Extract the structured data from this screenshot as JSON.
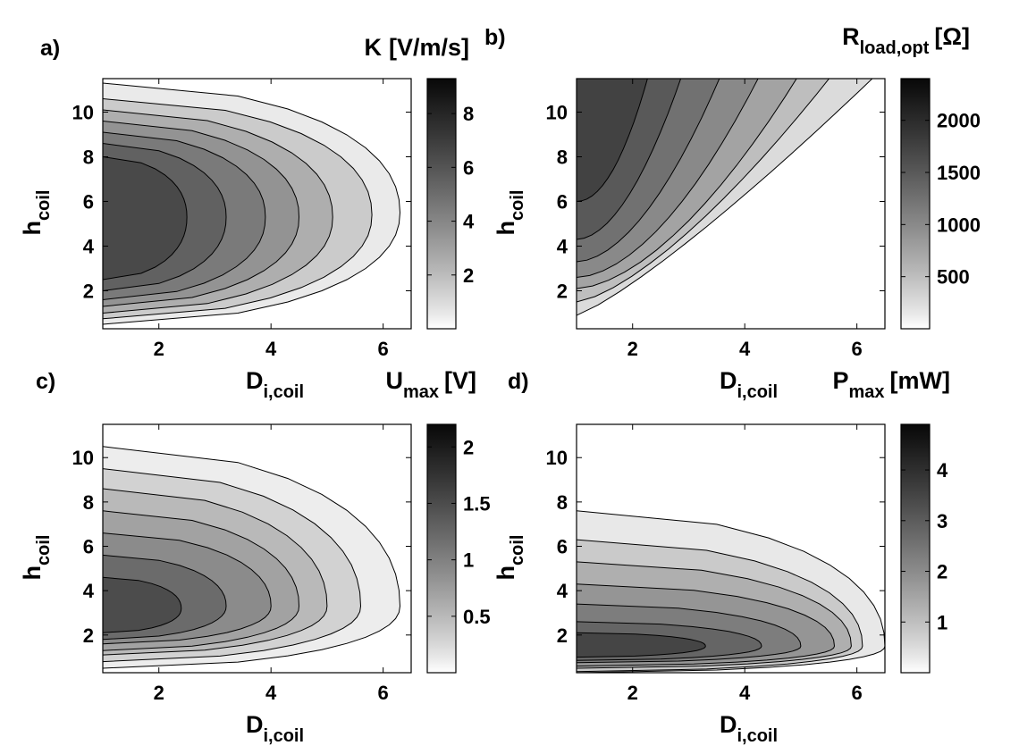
{
  "chart_data": [
    {
      "panel": "a)",
      "type": "heatmap",
      "subtype": "filled-contour",
      "colorbar_title": {
        "main": "K",
        "units": "[V/m/s]"
      },
      "xlabel": {
        "main": "D",
        "sub": "i,coil"
      },
      "ylabel": {
        "main": "h",
        "sub": "coil"
      },
      "xlim": [
        1,
        6.5
      ],
      "ylim": [
        0.3,
        11.5
      ],
      "xticks": [
        2,
        4,
        6
      ],
      "yticks": [
        2,
        4,
        6,
        8,
        10
      ],
      "clim": [
        0,
        9.3
      ],
      "cticks": [
        2,
        4,
        6,
        8
      ],
      "contours": [
        {
          "level": 0.5,
          "x_max": 6.3,
          "y_bottom": 0.5,
          "y_top": 11.3,
          "y_tip": 5.5
        },
        {
          "level": 1.5,
          "x_max": 5.8,
          "y_bottom": 0.75,
          "y_top": 10.6,
          "y_tip": 5.4
        },
        {
          "level": 2.5,
          "x_max": 5.1,
          "y_bottom": 1.0,
          "y_top": 10.1,
          "y_tip": 5.3
        },
        {
          "level": 3.5,
          "x_max": 4.5,
          "y_bottom": 1.3,
          "y_top": 9.6,
          "y_tip": 5.3
        },
        {
          "level": 4.5,
          "x_max": 3.9,
          "y_bottom": 1.6,
          "y_top": 9.1,
          "y_tip": 5.3
        },
        {
          "level": 5.5,
          "x_max": 3.2,
          "y_bottom": 2.0,
          "y_top": 8.6,
          "y_tip": 5.3
        },
        {
          "level": 6.5,
          "x_max": 2.5,
          "y_bottom": 2.5,
          "y_top": 8.0,
          "y_tip": 5.3
        }
      ]
    },
    {
      "panel": "b)",
      "type": "heatmap",
      "subtype": "filled-contour",
      "colorbar_title": {
        "main": "R",
        "sub": "load,opt",
        "units": "[Ω]"
      },
      "xlabel": {
        "main": "D",
        "sub": "i,coil"
      },
      "ylabel": {
        "main": "h",
        "sub": "coil"
      },
      "xlim": [
        1,
        6.5
      ],
      "ylim": [
        0.3,
        11.5
      ],
      "xticks": [
        2,
        4,
        6
      ],
      "yticks": [
        2,
        4,
        6,
        8,
        10
      ],
      "clim": [
        0,
        2400
      ],
      "cticks": [
        500,
        1000,
        1500,
        2000
      ],
      "contours": [
        {
          "level": 250,
          "x_top": 6.4,
          "y_left": 0.9,
          "x_bottom": 5.7
        },
        {
          "level": 500,
          "x_top": 5.6,
          "y_left": 1.5,
          "x_bottom": 4.3
        },
        {
          "level": 750,
          "x_top": 5.0,
          "y_left": 2.1,
          "x_bottom": 3.2
        },
        {
          "level": 1000,
          "x_top": 4.3,
          "y_left": 2.6,
          "x_bottom": 2.6
        },
        {
          "level": 1250,
          "x_top": 3.6,
          "y_left": 3.3,
          "x_bottom": 2.2
        },
        {
          "level": 1500,
          "x_top": 2.9,
          "y_left": 4.3,
          "x_bottom": 1.8
        },
        {
          "level": 1750,
          "x_top": 2.3,
          "y_left": 6.0,
          "x_bottom": 1.4
        }
      ]
    },
    {
      "panel": "c)",
      "type": "heatmap",
      "subtype": "filled-contour",
      "colorbar_title": {
        "main": "U",
        "sub": "max",
        "units": "[V]"
      },
      "xlabel": {
        "main": "D",
        "sub": "i,coil"
      },
      "ylabel": {
        "main": "h",
        "sub": "coil"
      },
      "xlim": [
        1,
        6.5
      ],
      "ylim": [
        0.3,
        11.5
      ],
      "xticks": [
        2,
        4,
        6
      ],
      "yticks": [
        2,
        4,
        6,
        8,
        10
      ],
      "clim": [
        0,
        2.2
      ],
      "cticks": [
        0.5,
        1,
        1.5,
        2
      ],
      "contours": [
        {
          "level": 0.1,
          "x_max": 6.3,
          "y_bottom": 0.5,
          "y_top": 10.5,
          "y_tip": 3.3
        },
        {
          "level": 0.3,
          "x_max": 5.6,
          "y_bottom": 0.8,
          "y_top": 9.5,
          "y_tip": 3.3
        },
        {
          "level": 0.5,
          "x_max": 5.0,
          "y_bottom": 1.1,
          "y_top": 8.6,
          "y_tip": 3.3
        },
        {
          "level": 0.7,
          "x_max": 4.5,
          "y_bottom": 1.3,
          "y_top": 7.6,
          "y_tip": 3.3
        },
        {
          "level": 0.9,
          "x_max": 4.0,
          "y_bottom": 1.6,
          "y_top": 6.6,
          "y_tip": 3.3
        },
        {
          "level": 1.2,
          "x_max": 3.2,
          "y_bottom": 1.8,
          "y_top": 5.6,
          "y_tip": 3.3
        },
        {
          "level": 1.5,
          "x_max": 2.4,
          "y_bottom": 2.1,
          "y_top": 4.6,
          "y_tip": 3.2
        }
      ]
    },
    {
      "panel": "d)",
      "type": "heatmap",
      "subtype": "filled-contour",
      "colorbar_title": {
        "main": "P",
        "sub": "max",
        "units": "[mW]"
      },
      "xlabel": {
        "main": "D",
        "sub": "i,coil"
      },
      "ylabel": {
        "main": "h",
        "sub": "coil"
      },
      "xlim": [
        1,
        6.5
      ],
      "ylim": [
        0.3,
        11.5
      ],
      "xticks": [
        2,
        4,
        6
      ],
      "yticks": [
        2,
        4,
        6,
        8,
        10
      ],
      "clim": [
        0,
        4.9
      ],
      "cticks": [
        1,
        2,
        3,
        4
      ],
      "contours": [
        {
          "level": 0.3,
          "x_max": 6.5,
          "y_bottom": 0.3,
          "y_top": 7.6,
          "y_tip": 1.5
        },
        {
          "level": 0.8,
          "x_max": 6.1,
          "y_bottom": 0.35,
          "y_top": 6.3,
          "y_tip": 1.5
        },
        {
          "level": 1.3,
          "x_max": 5.9,
          "y_bottom": 0.5,
          "y_top": 5.3,
          "y_tip": 1.5
        },
        {
          "level": 1.8,
          "x_max": 5.6,
          "y_bottom": 0.6,
          "y_top": 4.3,
          "y_tip": 1.5
        },
        {
          "level": 2.3,
          "x_max": 5.0,
          "y_bottom": 0.75,
          "y_top": 3.4,
          "y_tip": 1.5
        },
        {
          "level": 2.8,
          "x_max": 4.3,
          "y_bottom": 0.85,
          "y_top": 2.6,
          "y_tip": 1.5
        },
        {
          "level": 3.5,
          "x_max": 3.3,
          "y_bottom": 1.0,
          "y_top": 2.1,
          "y_tip": 1.5
        }
      ]
    }
  ]
}
